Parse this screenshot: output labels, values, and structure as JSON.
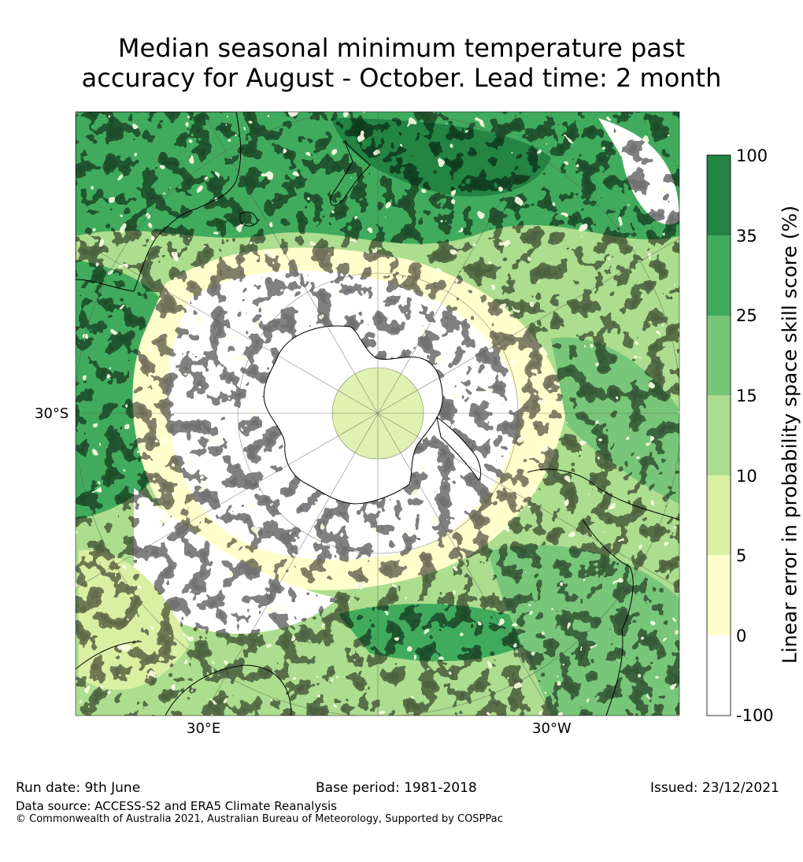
{
  "title_line1": "Median seasonal minimum temperature past",
  "title_line2": "accuracy for August - October. Lead time: 2 month",
  "map": {
    "projection": "south-polar-stereographic",
    "lat_label": "30°S",
    "lon_label_left": "30°E",
    "lon_label_right": "30°W"
  },
  "colorbar": {
    "label": "Linear error in probability space skill score (%)",
    "ticks": [
      "100",
      "35",
      "25",
      "15",
      "10",
      "5",
      "0",
      "-100"
    ],
    "levels": [
      {
        "range": "25 to 35 / 35 to 100",
        "colors": [
          "#238443",
          "#41ab5d",
          "#78c679",
          "#addd8e",
          "#d9f0a3",
          "#ffffcc",
          "#ffffff"
        ]
      }
    ]
  },
  "footer": {
    "run_date": "Run date: 9th June",
    "base_period": "Base period: 1981-2018",
    "issued": "Issued: 23/12/2021",
    "data_source": "Data source: ACCESS-S2 and ERA5 Climate Reanalysis",
    "copyright": "© Commonwealth of Australia 2021, Australian Bureau of Meteorology, Supported by COSPPac"
  }
}
